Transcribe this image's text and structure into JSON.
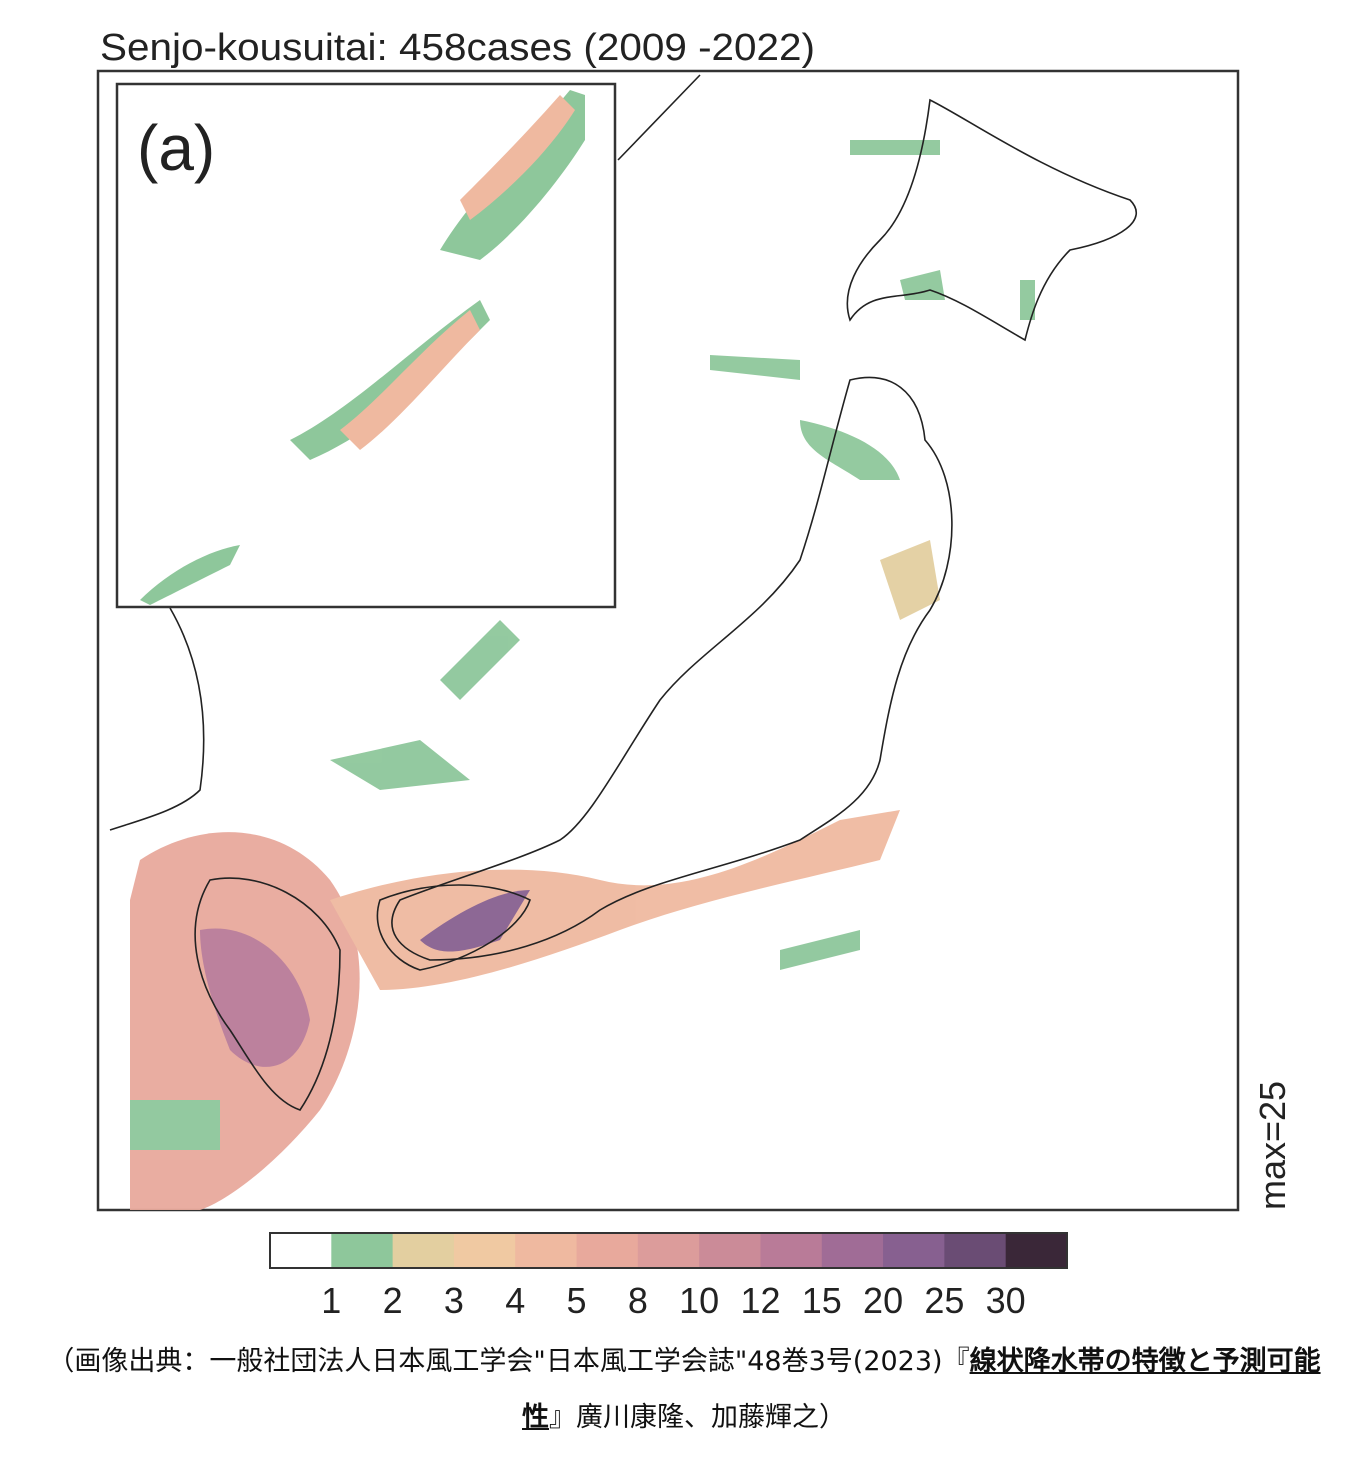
{
  "map": {
    "title": "Senjo-kousuitai: 458cases (2009 -2022)",
    "panel_label": "(a)",
    "max_label": "max=25",
    "colorbar": {
      "colors": [
        "#ffffff",
        "#8ec79b",
        "#e3cfa0",
        "#f0c9a2",
        "#efb9a0",
        "#e8a99c",
        "#dc9c9b",
        "#cb8b98",
        "#b97b98",
        "#a06c96",
        "#876090",
        "#6a4c74",
        "#3a2738"
      ],
      "ticks": [
        1,
        2,
        3,
        4,
        5,
        8,
        10,
        12,
        15,
        20,
        25,
        30
      ]
    },
    "caption": {
      "prefix": "（画像出典：一般社団法人日本風工学会\"日本風工学会誌\"48巻3号(2023)『",
      "link": "線状降水帯の特徴と予測可能性",
      "suffix": "』廣川康隆、加藤輝之）"
    }
  }
}
